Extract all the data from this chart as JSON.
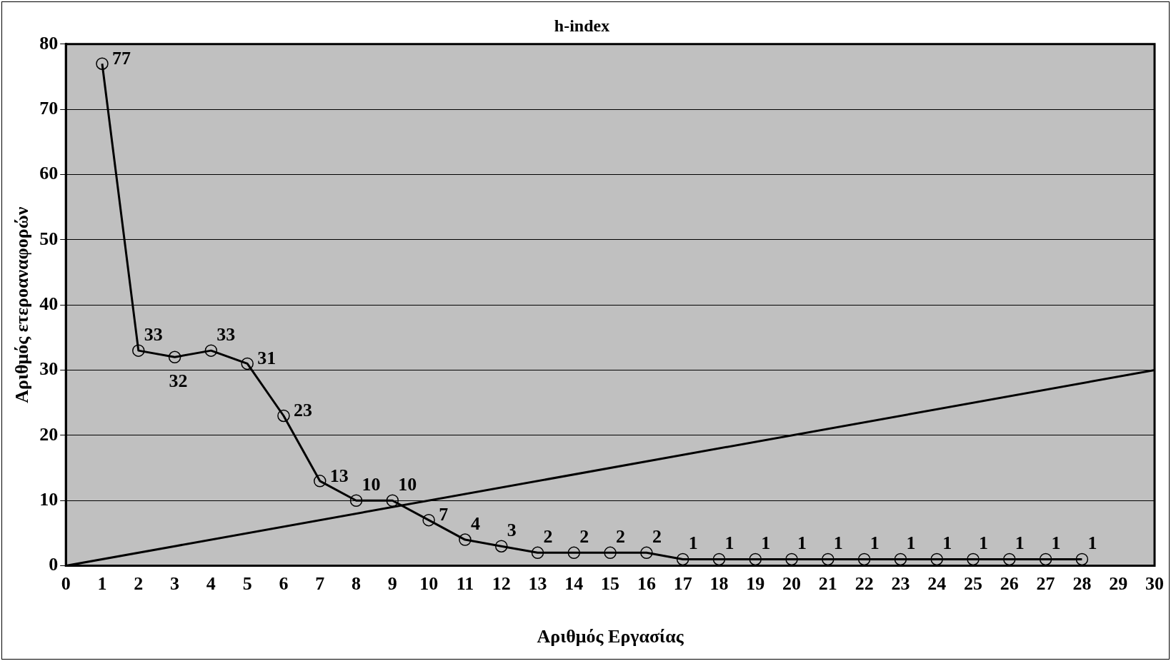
{
  "chart_data": {
    "type": "line",
    "title": "h-index",
    "xlabel": "Αριθμός Εργασίας",
    "ylabel": "Αριθμός ετεροαναφορών",
    "xlim": [
      0,
      30
    ],
    "xticks": [
      0,
      1,
      2,
      3,
      4,
      5,
      6,
      7,
      8,
      9,
      10,
      11,
      12,
      13,
      14,
      15,
      16,
      17,
      18,
      19,
      20,
      21,
      22,
      23,
      24,
      25,
      26,
      27,
      28,
      29,
      30
    ],
    "ylim": [
      0,
      80
    ],
    "yticks": [
      0,
      10,
      20,
      30,
      40,
      50,
      60,
      70,
      80
    ],
    "grid": "y",
    "legend": false,
    "series": [
      {
        "color": "#000000",
        "marker": "circle",
        "data_labels": true,
        "x": [
          1,
          2,
          3,
          4,
          5,
          6,
          7,
          8,
          9,
          10,
          11,
          12,
          13,
          14,
          15,
          16,
          17,
          18,
          19,
          20,
          21,
          22,
          23,
          24,
          25,
          26,
          27,
          28
        ],
        "values": [
          77,
          33,
          32,
          33,
          31,
          23,
          13,
          10,
          10,
          7,
          4,
          3,
          2,
          2,
          2,
          2,
          1,
          1,
          1,
          1,
          1,
          1,
          1,
          1,
          1,
          1,
          1,
          1
        ]
      },
      {
        "color": "#000000",
        "marker": "none",
        "x": [
          0,
          30
        ],
        "values": [
          0,
          30
        ]
      }
    ]
  }
}
